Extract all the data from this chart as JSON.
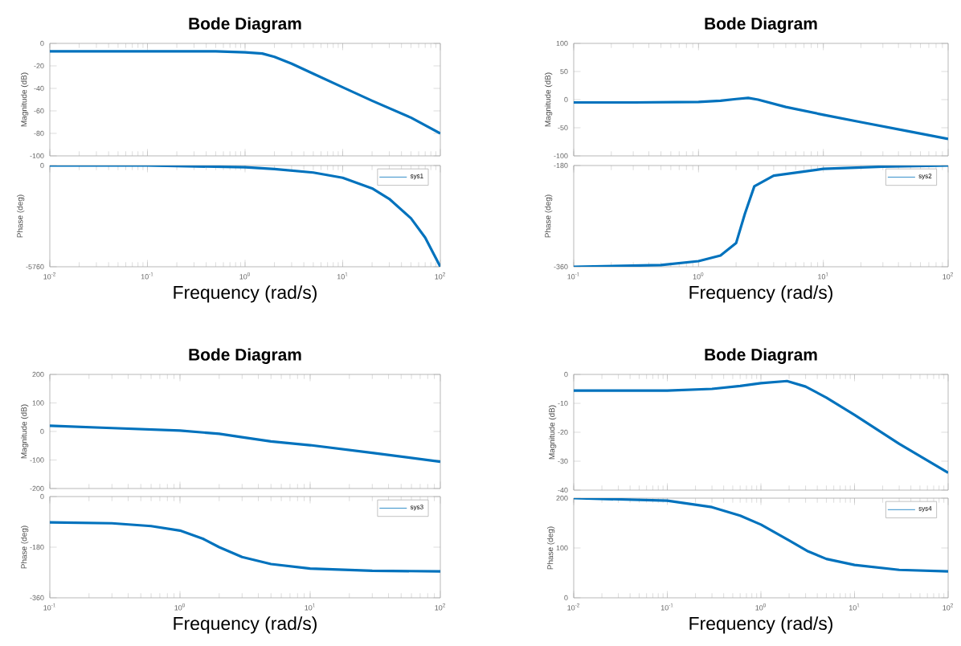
{
  "chart_data": [
    {
      "type": "line",
      "title": "Bode Diagram",
      "ylabel": "Magnitude (dB)",
      "log": "x",
      "tick_labels": "y",
      "xlim": [
        0.01,
        100
      ],
      "xticks": [
        {
          "value": 0.01,
          "label": null
        },
        {
          "value": 0.1,
          "label": null
        },
        {
          "value": 1,
          "label": null
        },
        {
          "value": 10,
          "label": null
        },
        {
          "value": 100,
          "label": null
        }
      ],
      "ylim": [
        -100,
        0
      ],
      "yticks": [
        -100,
        -80,
        -60,
        -40,
        -20,
        0
      ],
      "series": [
        {
          "color": "#0072bd",
          "x": [
            0.01,
            0.1,
            0.5,
            1,
            1.5,
            2,
            3,
            5,
            10,
            20,
            50,
            100
          ],
          "values": [
            -7,
            -7,
            -7,
            -8,
            -9,
            -12,
            -18,
            -27,
            -39,
            -51,
            -66,
            -80
          ]
        }
      ]
    },
    {
      "type": "line",
      "xlabel": "Frequency (rad/s)",
      "ylabel": "Phase (deg)",
      "log": "x",
      "legend": "top right",
      "xlim": [
        0.01,
        100
      ],
      "xticks": [
        {
          "value": 0.01,
          "label": "10$^{-2}$"
        },
        {
          "value": 0.1,
          "label": "10$^{-1}$"
        },
        {
          "value": 1,
          "label": "10$^{0}$"
        },
        {
          "value": 10,
          "label": "10$^{1}$"
        },
        {
          "value": 100,
          "label": "10$^{2}$"
        }
      ],
      "ylim": [
        -5760,
        0
      ],
      "yticks": [
        -5760,
        0
      ],
      "series": [
        {
          "name": "sys1",
          "color": "#0072bd",
          "x": [
            0.01,
            0.1,
            1,
            2,
            5,
            10,
            20,
            30,
            50,
            70,
            100
          ],
          "values": [
            0,
            0,
            -100,
            -200,
            -400,
            -700,
            -1300,
            -1900,
            -3000,
            -4100,
            -5760
          ]
        }
      ]
    },
    {
      "type": "line",
      "title": "Bode Diagram",
      "ylabel": "Magnitude (dB)",
      "log": "x",
      "tick_labels": "y",
      "xlim": [
        0.1,
        100
      ],
      "xticks": [
        {
          "value": 0.1,
          "label": null
        },
        {
          "value": 1,
          "label": null
        },
        {
          "value": 10,
          "label": null
        },
        {
          "value": 100,
          "label": null
        }
      ],
      "ylim": [
        -100,
        100
      ],
      "yticks": [
        -100,
        -50,
        0,
        50,
        100
      ],
      "series": [
        {
          "color": "#0072bd",
          "x": [
            0.1,
            0.3,
            1,
            1.5,
            2,
            2.5,
            3,
            5,
            10,
            20,
            50,
            100
          ],
          "values": [
            -5,
            -5,
            -4,
            -2,
            1,
            3,
            0,
            -13,
            -27,
            -40,
            -57,
            -70
          ]
        }
      ]
    },
    {
      "type": "line",
      "xlabel": "Frequency (rad/s)",
      "ylabel": "Phase (deg)",
      "log": "x",
      "legend": "top right",
      "xlim": [
        0.1,
        100
      ],
      "xticks": [
        {
          "value": 0.1,
          "label": "10$^{-1}$"
        },
        {
          "value": 1,
          "label": "10$^{0}$"
        },
        {
          "value": 10,
          "label": "10$^{1}$"
        },
        {
          "value": 100,
          "label": "10$^{2}$"
        }
      ],
      "ylim": [
        -360,
        -180
      ],
      "yticks": [
        -360,
        -180
      ],
      "series": [
        {
          "name": "sys2",
          "color": "#0072bd",
          "x": [
            0.1,
            0.5,
            1,
            1.5,
            2,
            2.35,
            2.8,
            4,
            10,
            30,
            100
          ],
          "values": [
            -360,
            -357,
            -350,
            -340,
            -318,
            -266,
            -217,
            -198,
            -186,
            -182,
            -180
          ]
        }
      ]
    },
    {
      "type": "line",
      "title": "Bode Diagram",
      "ylabel": "Magnitude (dB)",
      "log": "x",
      "tick_labels": "y",
      "xlim": [
        0.1,
        100
      ],
      "xticks": [
        {
          "value": 0.1,
          "label": null
        },
        {
          "value": 1,
          "label": null
        },
        {
          "value": 10,
          "label": null
        },
        {
          "value": 100,
          "label": null
        }
      ],
      "ylim": [
        -200,
        200
      ],
      "yticks": [
        -200,
        -100,
        0,
        100,
        200
      ],
      "series": [
        {
          "color": "#0072bd",
          "x": [
            0.1,
            0.3,
            1,
            2,
            3,
            5,
            10,
            30,
            100
          ],
          "values": [
            20,
            12,
            3,
            -8,
            -20,
            -35,
            -48,
            -75,
            -106
          ]
        }
      ]
    },
    {
      "type": "line",
      "xlabel": "Frequency (rad/s)",
      "ylabel": "Phase (deg)",
      "log": "x",
      "legend": "top right",
      "xlim": [
        0.1,
        100
      ],
      "xticks": [
        {
          "value": 0.1,
          "label": "10$^{-1}$"
        },
        {
          "value": 1,
          "label": "10$^{0}$"
        },
        {
          "value": 10,
          "label": "10$^{1}$"
        },
        {
          "value": 100,
          "label": "10$^{2}$"
        }
      ],
      "ylim": [
        -360,
        0
      ],
      "yticks": [
        -360,
        -180,
        0
      ],
      "series": [
        {
          "name": "sys3",
          "color": "#0072bd",
          "x": [
            0.1,
            0.3,
            0.6,
            1,
            1.5,
            2,
            3,
            5,
            10,
            30,
            100
          ],
          "values": [
            -92,
            -95,
            -105,
            -121,
            -150,
            -180,
            -215,
            -240,
            -256,
            -264,
            -266
          ]
        }
      ]
    },
    {
      "type": "line",
      "title": "Bode Diagram",
      "ylabel": "Magnitude (dB)",
      "log": "x",
      "tick_labels": "y",
      "xlim": [
        0.01,
        100
      ],
      "xticks": [
        {
          "value": 0.01,
          "label": null
        },
        {
          "value": 0.1,
          "label": null
        },
        {
          "value": 1,
          "label": null
        },
        {
          "value": 10,
          "label": null
        },
        {
          "value": 100,
          "label": null
        }
      ],
      "ylim": [
        -40,
        0
      ],
      "yticks": [
        -40,
        -30,
        -20,
        -10,
        0
      ],
      "series": [
        {
          "color": "#0072bd",
          "x": [
            0.01,
            0.1,
            0.3,
            0.6,
            1,
            1.9,
            3,
            5,
            10,
            30,
            100
          ],
          "values": [
            -5.6,
            -5.6,
            -5,
            -4,
            -3,
            -2.3,
            -4.2,
            -8,
            -14,
            -24,
            -34
          ]
        }
      ]
    },
    {
      "type": "line",
      "xlabel": "Frequency (rad/s)",
      "ylabel": "Phase (deg)",
      "log": "x",
      "legend": "top right",
      "xlim": [
        0.01,
        100
      ],
      "xticks": [
        {
          "value": 0.01,
          "label": "10$^{-2}$"
        },
        {
          "value": 0.1,
          "label": "10$^{-1}$"
        },
        {
          "value": 1,
          "label": "10$^{0}$"
        },
        {
          "value": 10,
          "label": "10$^{1}$"
        },
        {
          "value": 100,
          "label": "10$^{2}$"
        }
      ],
      "ylim": [
        0,
        200
      ],
      "yticks": [
        0,
        100,
        200
      ],
      "series": [
        {
          "name": "sys4",
          "color": "#0072bd",
          "x": [
            0.01,
            0.1,
            0.3,
            0.6,
            1,
            2,
            3.2,
            5,
            10,
            30,
            100
          ],
          "values": [
            200,
            195,
            182,
            165,
            147,
            115,
            93,
            78,
            66,
            56,
            53
          ]
        }
      ]
    }
  ]
}
